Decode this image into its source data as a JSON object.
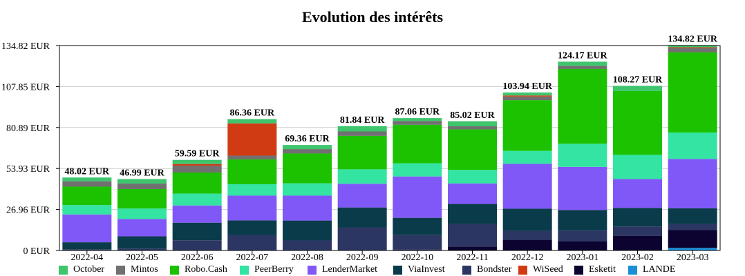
{
  "chart_data": {
    "type": "bar",
    "stacked": true,
    "title": "Evolution des intérêts",
    "xlabel": "",
    "ylabel": "",
    "ylim": [
      0,
      134.82
    ],
    "yticks": [
      "0 EUR",
      "26.96 EUR",
      "53.93 EUR",
      "80.89 EUR",
      "107.85 EUR",
      "134.82 EUR"
    ],
    "grid": true,
    "legend_position": "bottom",
    "categories": [
      "2022-04",
      "2022-05",
      "2022-06",
      "2022-07",
      "2022-08",
      "2022-09",
      "2022-10",
      "2022-11",
      "2022-12",
      "2023-01",
      "2023-02",
      "2023-03"
    ],
    "totals": [
      "48.02 EUR",
      "46.99 EUR",
      "59.59 EUR",
      "86.36 EUR",
      "69.36 EUR",
      "81.84 EUR",
      "87.06 EUR",
      "85.02 EUR",
      "103.94 EUR",
      "124.17 EUR",
      "108.27 EUR",
      "134.82 EUR"
    ],
    "series": [
      {
        "name": "LANDE",
        "color": "#1a8fd6",
        "values": [
          0,
          0,
          0,
          0,
          0,
          0,
          0,
          0,
          0,
          0,
          0,
          1.7
        ]
      },
      {
        "name": "Esketit",
        "color": "#0d0330",
        "values": [
          0,
          0,
          0,
          0,
          0,
          0,
          0.5,
          2.6,
          7.0,
          5.9,
          9.7,
          11.7
        ]
      },
      {
        "name": "Bondster",
        "color": "#2b3663",
        "values": [
          0.8,
          1.3,
          6.7,
          10.0,
          6.6,
          15.2,
          9.6,
          14.9,
          5.9,
          7.2,
          6.1,
          4.1
        ]
      },
      {
        "name": "ViaInvest",
        "color": "#0a3b4b",
        "values": [
          4.6,
          8.0,
          11.6,
          9.8,
          13.1,
          13.1,
          11.4,
          13.1,
          14.6,
          13.5,
          12.2,
          10.3
        ]
      },
      {
        "name": "LenderMarket",
        "color": "#8158f8",
        "values": [
          18.3,
          11.4,
          11.3,
          16.3,
          16.4,
          15.6,
          27.2,
          13.5,
          29.5,
          28.4,
          19.0,
          32.4
        ]
      },
      {
        "name": "PeerBerry",
        "color": "#33e4a3",
        "values": [
          6.2,
          6.9,
          7.8,
          7.5,
          8.1,
          9.5,
          8.7,
          8.9,
          8.5,
          15.2,
          15.9,
          17.4
        ]
      },
      {
        "name": "Robo.Cash",
        "color": "#1cc200",
        "values": [
          12.1,
          12.8,
          13.9,
          16.3,
          19.6,
          22.0,
          25.3,
          26.7,
          33.4,
          49.2,
          42.0,
          52.7
        ]
      },
      {
        "name": "Mintos",
        "color": "#707070",
        "values": [
          3.5,
          3.6,
          4.5,
          2.5,
          2.9,
          2.9,
          2.5,
          2.0,
          2.4,
          2.1,
          0,
          2.9
        ]
      },
      {
        "name": "WiSeed",
        "color": "#d13b13",
        "values": [
          0,
          0,
          1.1,
          21.2,
          0,
          0,
          0,
          0,
          0.7,
          0,
          0,
          0.5
        ]
      },
      {
        "name": "October",
        "color": "#3ec56d",
        "values": [
          2.5,
          3.0,
          2.7,
          2.8,
          2.7,
          3.5,
          1.9,
          3.3,
          1.9,
          2.7,
          3.4,
          1.4
        ]
      }
    ],
    "legend_order": [
      "October",
      "Mintos",
      "Robo.Cash",
      "PeerBerry",
      "LenderMarket",
      "ViaInvest",
      "Bondster",
      "WiSeed",
      "Esketit",
      "LANDE"
    ]
  }
}
